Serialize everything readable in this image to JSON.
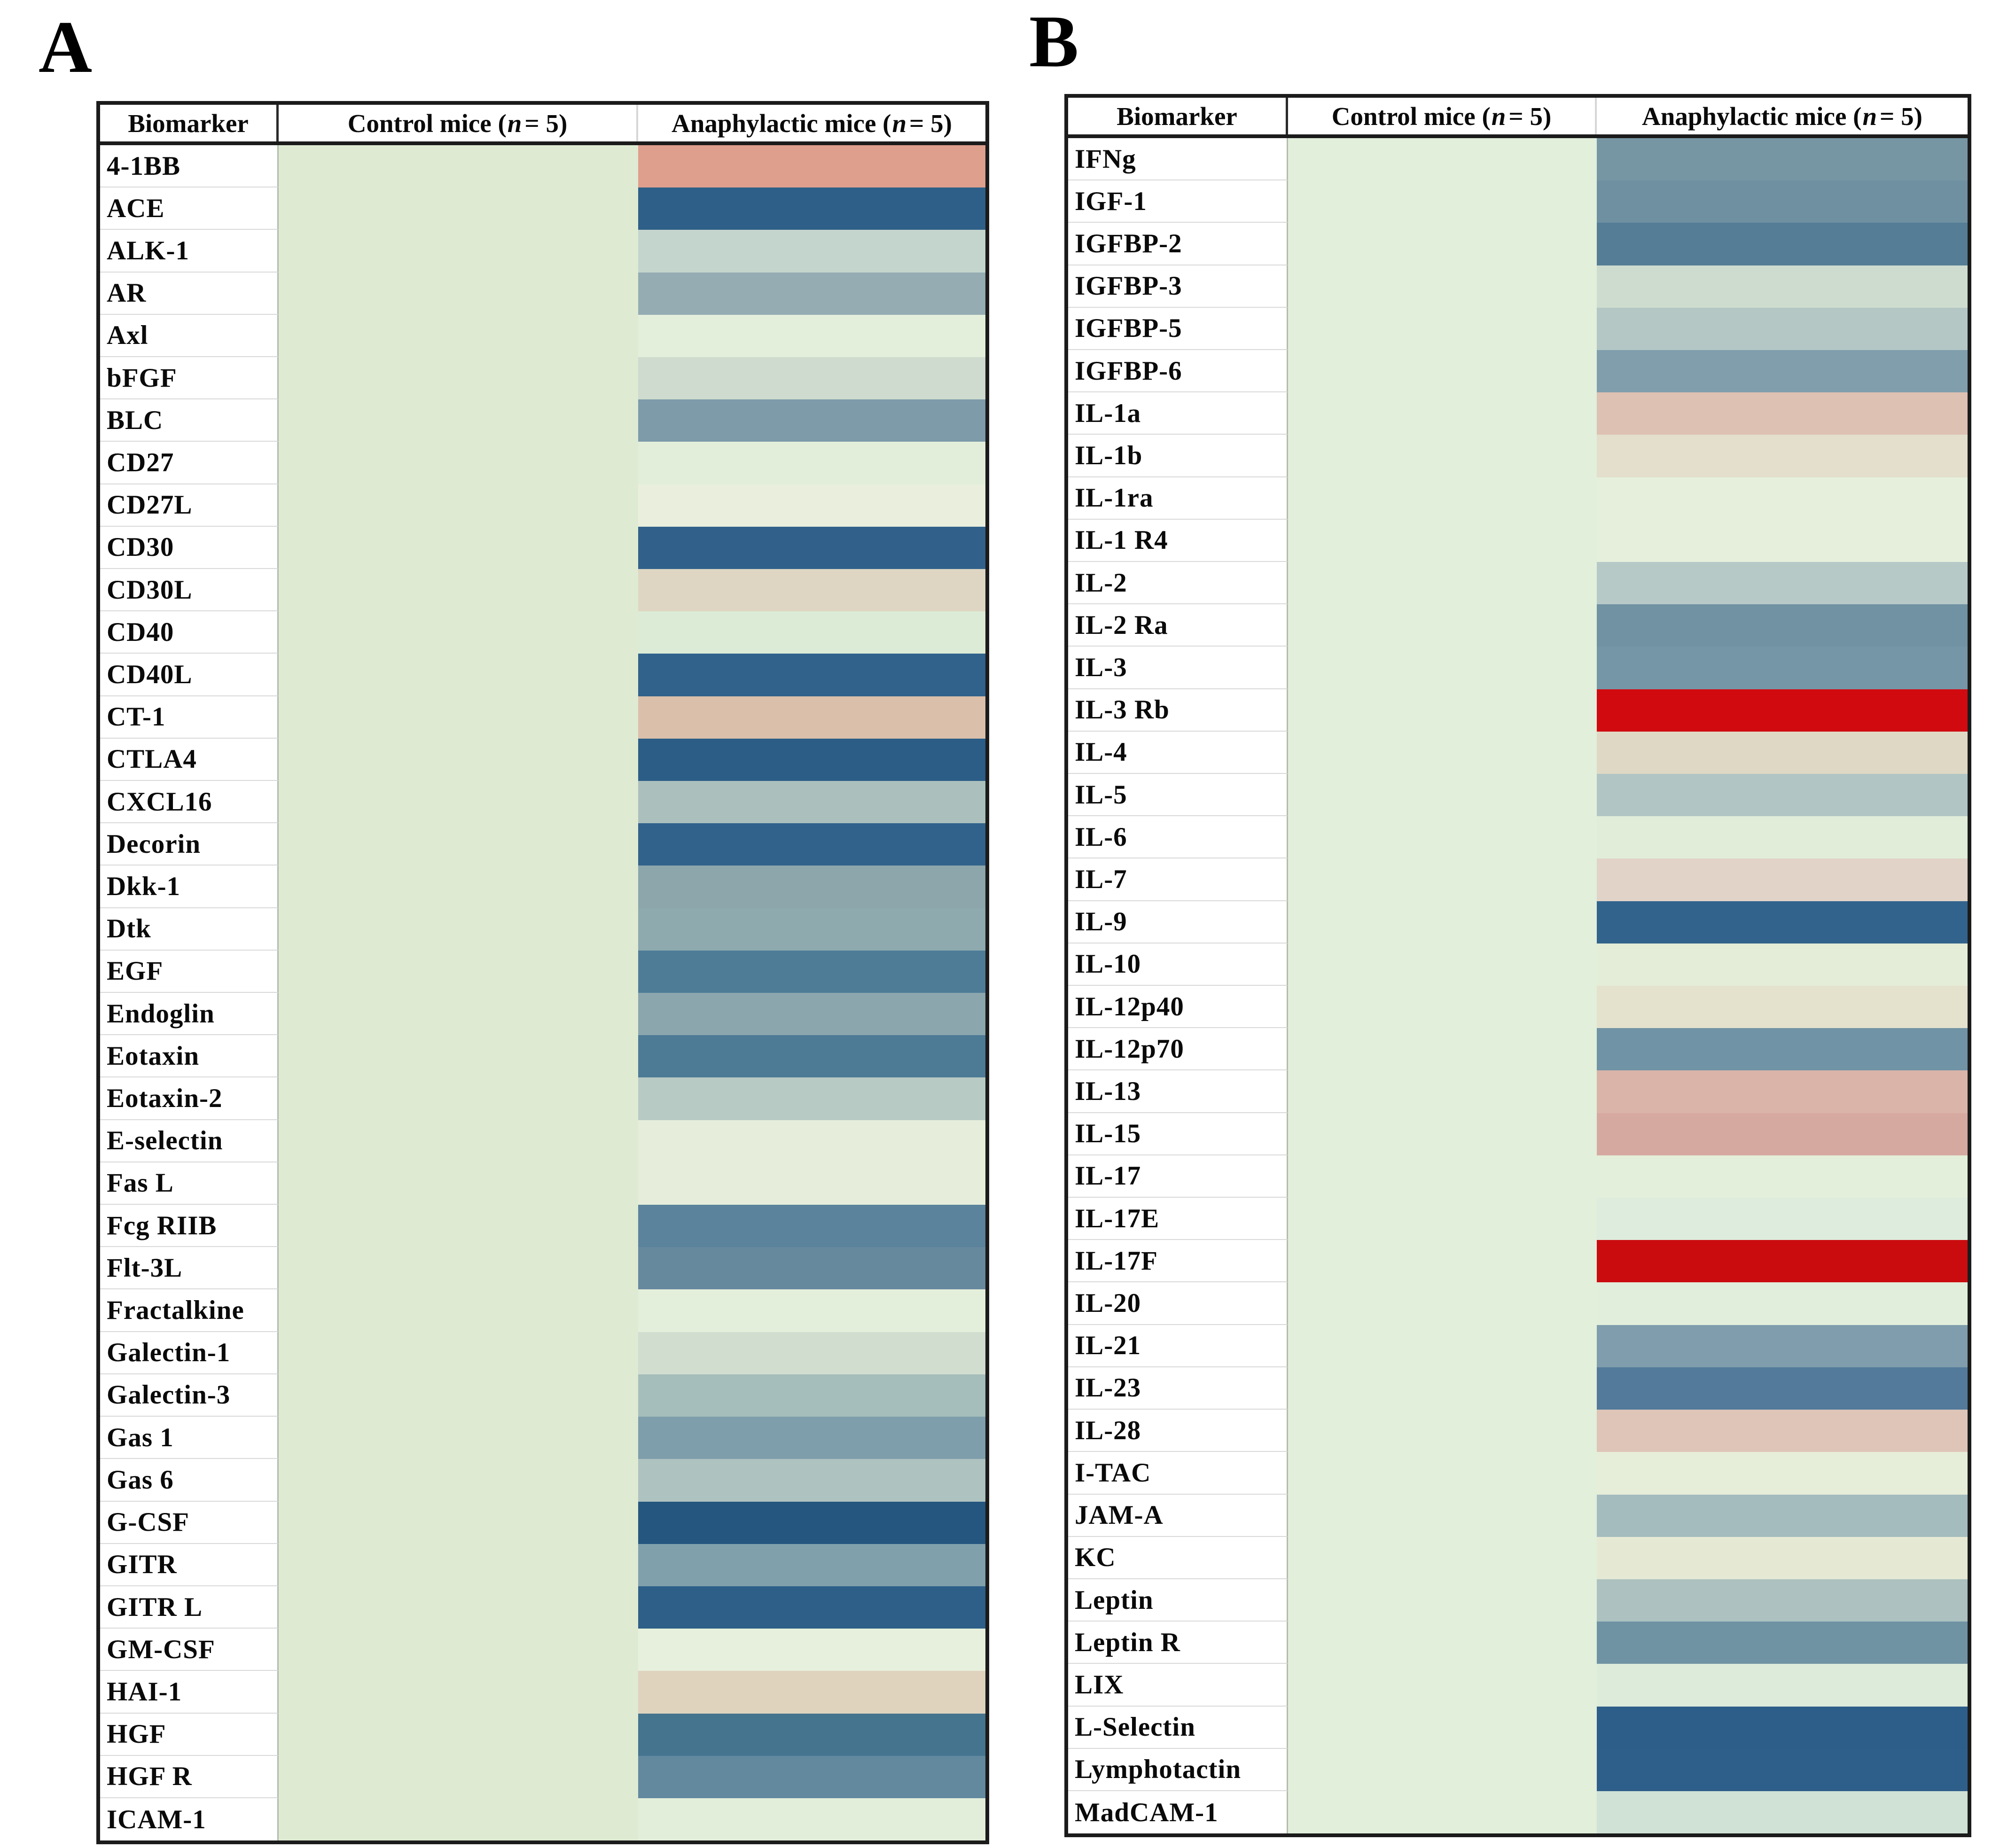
{
  "figure_type": "biomarker-heatmap-tables",
  "chart_data": [
    {
      "type": "heatmap",
      "panel_title": "A",
      "header_biomarker": "Biomarker",
      "header_control": {
        "prefix": "Control mice (",
        "n": "n",
        "suffix": " = 5)"
      },
      "header_anaphylactic": {
        "prefix": "Anaphylactic mice (",
        "n": "n",
        "suffix": " = 5)"
      },
      "control_color": "#deebd2",
      "legend": "cell color encodes relative expression (green/pale = low change, blue = decreased, red/salmon = increased); no numeric scale shown",
      "rows": [
        {
          "biomarker": "4-1BB",
          "anaphylactic_color": "#de9f8d"
        },
        {
          "biomarker": "ACE",
          "anaphylactic_color": "#2e5f88"
        },
        {
          "biomarker": "ALK-1",
          "anaphylactic_color": "#c4d5cd"
        },
        {
          "biomarker": "AR",
          "anaphylactic_color": "#94acb2"
        },
        {
          "biomarker": "Axl",
          "anaphylactic_color": "#e3efda"
        },
        {
          "biomarker": "bFGF",
          "anaphylactic_color": "#cedbce"
        },
        {
          "biomarker": "BLC",
          "anaphylactic_color": "#7d9ba9"
        },
        {
          "biomarker": "CD27",
          "anaphylactic_color": "#e3eeda"
        },
        {
          "biomarker": "CD27L",
          "anaphylactic_color": "#e9efdc"
        },
        {
          "biomarker": "CD30",
          "anaphylactic_color": "#31618b"
        },
        {
          "biomarker": "CD30L",
          "anaphylactic_color": "#ded6c2"
        },
        {
          "biomarker": "CD40",
          "anaphylactic_color": "#dcebd5"
        },
        {
          "biomarker": "CD40L",
          "anaphylactic_color": "#30628c"
        },
        {
          "biomarker": "CT-1",
          "anaphylactic_color": "#dabfab"
        },
        {
          "biomarker": "CTLA4",
          "anaphylactic_color": "#2b5d87"
        },
        {
          "biomarker": "CXCL16",
          "anaphylactic_color": "#abc0bd"
        },
        {
          "biomarker": "Decorin",
          "anaphylactic_color": "#31628b"
        },
        {
          "biomarker": "Dkk-1",
          "anaphylactic_color": "#8ca6ac"
        },
        {
          "biomarker": "Dtk",
          "anaphylactic_color": "#8eaaae"
        },
        {
          "biomarker": "EGF",
          "anaphylactic_color": "#4e7c97"
        },
        {
          "biomarker": "Endoglin",
          "anaphylactic_color": "#8ca6ad"
        },
        {
          "biomarker": "Eotaxin",
          "anaphylactic_color": "#4d7b96"
        },
        {
          "biomarker": "Eotaxin-2",
          "anaphylactic_color": "#b8cac4"
        },
        {
          "biomarker": "E-selectin",
          "anaphylactic_color": "#e6eedb"
        },
        {
          "biomarker": "Fas L",
          "anaphylactic_color": "#e6eedb"
        },
        {
          "biomarker": "Fcg RIIB",
          "anaphylactic_color": "#5b839c"
        },
        {
          "biomarker": "Flt-3L",
          "anaphylactic_color": "#67899e"
        },
        {
          "biomarker": "Fractalkine",
          "anaphylactic_color": "#e4efdb"
        },
        {
          "biomarker": "Galectin-1",
          "anaphylactic_color": "#d0ddcf"
        },
        {
          "biomarker": "Galectin-3",
          "anaphylactic_color": "#a5bdbb"
        },
        {
          "biomarker": "Gas 1",
          "anaphylactic_color": "#7e9eab"
        },
        {
          "biomarker": "Gas 6",
          "anaphylactic_color": "#aec2c0"
        },
        {
          "biomarker": "G-CSF",
          "anaphylactic_color": "#24567f"
        },
        {
          "biomarker": "GITR",
          "anaphylactic_color": "#80a0ac"
        },
        {
          "biomarker": "GITR L",
          "anaphylactic_color": "#2d5f88"
        },
        {
          "biomarker": "GM-CSF",
          "anaphylactic_color": "#e7f0dc"
        },
        {
          "biomarker": "HAI-1",
          "anaphylactic_color": "#dfd3be"
        },
        {
          "biomarker": "HGF",
          "anaphylactic_color": "#45748f"
        },
        {
          "biomarker": "HGF R",
          "anaphylactic_color": "#63899f"
        },
        {
          "biomarker": "ICAM-1",
          "anaphylactic_color": "#e3eeda"
        }
      ]
    },
    {
      "type": "heatmap",
      "panel_title": "B",
      "header_biomarker": "Biomarker",
      "header_control": {
        "prefix": "Control mice (",
        "n": "n",
        "suffix": " = 5)"
      },
      "header_anaphylactic": {
        "prefix": "Anaphylactic mice (",
        "n": "n",
        "suffix": " = 5)"
      },
      "control_color": "#e1efdb",
      "legend": "cell color encodes relative expression (green/pale = low change, blue = decreased, red = strongly increased); no numeric scale shown",
      "rows": [
        {
          "biomarker": "IFNg",
          "anaphylactic_color": "#7796a4"
        },
        {
          "biomarker": "IGF-1",
          "anaphylactic_color": "#6e90a1"
        },
        {
          "biomarker": "IGFBP-2",
          "anaphylactic_color": "#557d95"
        },
        {
          "biomarker": "IGFBP-3",
          "anaphylactic_color": "#cddcce"
        },
        {
          "biomarker": "IGFBP-5",
          "anaphylactic_color": "#b4c7c5"
        },
        {
          "biomarker": "IGFBP-6",
          "anaphylactic_color": "#809eac"
        },
        {
          "biomarker": "IL-1a",
          "anaphylactic_color": "#ddc1b3"
        },
        {
          "biomarker": "IL-1b",
          "anaphylactic_color": "#e3dfcc"
        },
        {
          "biomarker": "IL-1ra",
          "anaphylactic_color": "#e5efdc"
        },
        {
          "biomarker": "IL-1 R4",
          "anaphylactic_color": "#e6efdc"
        },
        {
          "biomarker": "IL-2",
          "anaphylactic_color": "#b6c9c7"
        },
        {
          "biomarker": "IL-2 Ra",
          "anaphylactic_color": "#7092a2"
        },
        {
          "biomarker": "IL-3",
          "anaphylactic_color": "#7596a6"
        },
        {
          "biomarker": "IL-3 Rb",
          "anaphylactic_color": "#d10a10"
        },
        {
          "biomarker": "IL-4",
          "anaphylactic_color": "#ded8c4"
        },
        {
          "biomarker": "IL-5",
          "anaphylactic_color": "#b1c5c5"
        },
        {
          "biomarker": "IL-6",
          "anaphylactic_color": "#e1edd9"
        },
        {
          "biomarker": "IL-7",
          "anaphylactic_color": "#e1d3c7"
        },
        {
          "biomarker": "IL-9",
          "anaphylactic_color": "#32638c"
        },
        {
          "biomarker": "IL-10",
          "anaphylactic_color": "#e4edd7"
        },
        {
          "biomarker": "IL-12p40",
          "anaphylactic_color": "#e4e1cd"
        },
        {
          "biomarker": "IL-12p70",
          "anaphylactic_color": "#7093a5"
        },
        {
          "biomarker": "IL-13",
          "anaphylactic_color": "#dab4a9"
        },
        {
          "biomarker": "IL-15",
          "anaphylactic_color": "#d6a9a0"
        },
        {
          "biomarker": "IL-17",
          "anaphylactic_color": "#e3efda"
        },
        {
          "biomarker": "IL-17E",
          "anaphylactic_color": "#ddecdd"
        },
        {
          "biomarker": "IL-17F",
          "anaphylactic_color": "#ca0c0f"
        },
        {
          "biomarker": "IL-20",
          "anaphylactic_color": "#e1eedb"
        },
        {
          "biomarker": "IL-21",
          "anaphylactic_color": "#7f9dac"
        },
        {
          "biomarker": "IL-23",
          "anaphylactic_color": "#537a9b"
        },
        {
          "biomarker": "IL-28",
          "anaphylactic_color": "#dec5b8"
        },
        {
          "biomarker": "I-TAC",
          "anaphylactic_color": "#e6edd9"
        },
        {
          "biomarker": "JAM-A",
          "anaphylactic_color": "#a5bcbe"
        },
        {
          "biomarker": "KC",
          "anaphylactic_color": "#e5e9d4"
        },
        {
          "biomarker": "Leptin",
          "anaphylactic_color": "#acc1c0"
        },
        {
          "biomarker": "Leptin R",
          "anaphylactic_color": "#7093a4"
        },
        {
          "biomarker": "LIX",
          "anaphylactic_color": "#ddebda"
        },
        {
          "biomarker": "L-Selectin",
          "anaphylactic_color": "#2d5e8a"
        },
        {
          "biomarker": "Lymphotactin",
          "anaphylactic_color": "#2e5f8b"
        },
        {
          "biomarker": "MadCAM-1",
          "anaphylactic_color": "#d0e1d6"
        }
      ]
    }
  ]
}
